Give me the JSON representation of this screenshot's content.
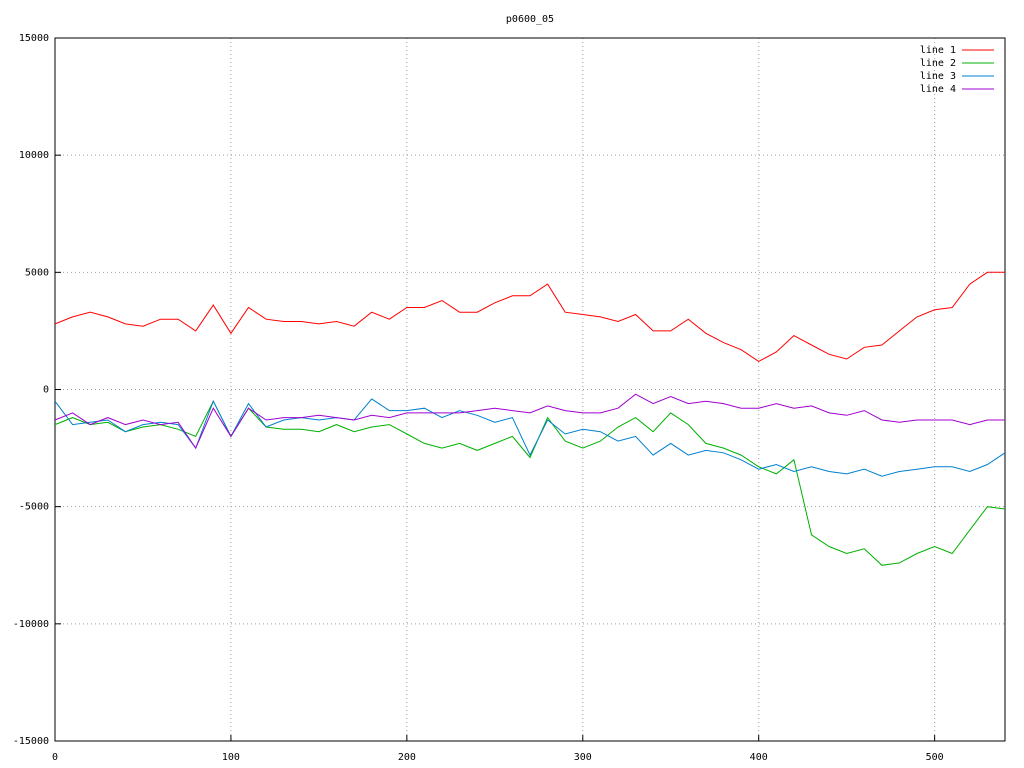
{
  "chart_data": {
    "type": "line",
    "title": "p0600_05",
    "x": [
      0,
      10,
      20,
      30,
      40,
      50,
      60,
      70,
      80,
      90,
      100,
      110,
      120,
      130,
      140,
      150,
      160,
      170,
      180,
      190,
      200,
      210,
      220,
      230,
      240,
      250,
      260,
      270,
      280,
      290,
      300,
      310,
      320,
      330,
      340,
      350,
      360,
      370,
      380,
      390,
      400,
      410,
      420,
      430,
      440,
      450,
      460,
      470,
      480,
      490,
      500,
      510,
      520,
      530,
      540
    ],
    "series": [
      {
        "name": "line 1",
        "color": "#ff0000",
        "values": [
          2800,
          3100,
          3300,
          3100,
          2800,
          2700,
          3000,
          3000,
          2500,
          3600,
          2400,
          3500,
          3000,
          2900,
          2900,
          2800,
          2900,
          2700,
          3300,
          3000,
          3500,
          3500,
          3800,
          3300,
          3300,
          3700,
          4000,
          4000,
          4500,
          3300,
          3200,
          3100,
          2900,
          3200,
          2500,
          2500,
          3000,
          2400,
          2000,
          1700,
          1200,
          1600,
          2300,
          1900,
          1500,
          1300,
          1800,
          1900,
          2500,
          3100,
          3400,
          3500,
          4500,
          5000,
          5000
        ]
      },
      {
        "name": "line 2",
        "color": "#00b000",
        "values": [
          -1500,
          -1200,
          -1500,
          -1400,
          -1800,
          -1600,
          -1500,
          -1700,
          -2000,
          -500,
          -2000,
          -800,
          -1600,
          -1700,
          -1700,
          -1800,
          -1500,
          -1800,
          -1600,
          -1500,
          -1900,
          -2300,
          -2500,
          -2300,
          -2600,
          -2300,
          -2000,
          -2900,
          -1200,
          -2200,
          -2500,
          -2200,
          -1600,
          -1200,
          -1800,
          -1000,
          -1500,
          -2300,
          -2500,
          -2800,
          -3300,
          -3600,
          -3000,
          -6200,
          -6700,
          -7000,
          -6800,
          -7500,
          -7400,
          -7000,
          -6700,
          -7000,
          -6000,
          -5000,
          -5100
        ]
      },
      {
        "name": "line 3",
        "color": "#0080d0",
        "values": [
          -500,
          -1500,
          -1400,
          -1300,
          -1800,
          -1500,
          -1400,
          -1500,
          -2500,
          -500,
          -2000,
          -600,
          -1600,
          -1300,
          -1200,
          -1300,
          -1200,
          -1300,
          -400,
          -900,
          -900,
          -800,
          -1200,
          -900,
          -1100,
          -1400,
          -1200,
          -2800,
          -1300,
          -1900,
          -1700,
          -1800,
          -2200,
          -2000,
          -2800,
          -2300,
          -2800,
          -2600,
          -2700,
          -3000,
          -3400,
          -3200,
          -3500,
          -3300,
          -3500,
          -3600,
          -3400,
          -3700,
          -3500,
          -3400,
          -3300,
          -3300,
          -3500,
          -3200,
          -2700
        ]
      },
      {
        "name": "line 4",
        "color": "#a000d0",
        "values": [
          -1300,
          -1000,
          -1500,
          -1200,
          -1500,
          -1300,
          -1500,
          -1400,
          -2500,
          -800,
          -2000,
          -800,
          -1300,
          -1200,
          -1200,
          -1100,
          -1200,
          -1300,
          -1100,
          -1200,
          -1000,
          -1000,
          -1000,
          -1000,
          -900,
          -800,
          -900,
          -1000,
          -700,
          -900,
          -1000,
          -1000,
          -800,
          -200,
          -600,
          -300,
          -600,
          -500,
          -600,
          -800,
          -800,
          -600,
          -800,
          -700,
          -1000,
          -1100,
          -900,
          -1300,
          -1400,
          -1300,
          -1300,
          -1300,
          -1500,
          -1300,
          -1300
        ]
      }
    ],
    "xlim": [
      0,
      540
    ],
    "xticks": [
      0,
      100,
      200,
      300,
      400,
      500
    ],
    "ylim": [
      -15000,
      15000
    ],
    "yticks": [
      -15000,
      -10000,
      -5000,
      0,
      5000,
      10000,
      15000
    ],
    "grid": true,
    "legend": "top-right"
  }
}
